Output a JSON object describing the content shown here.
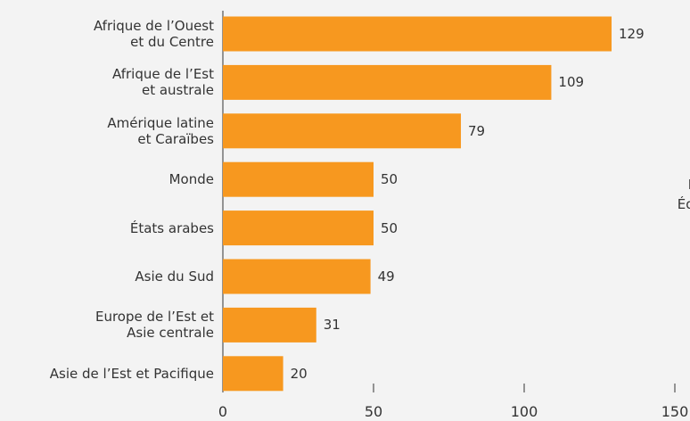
{
  "chart_data": {
    "type": "bar",
    "orientation": "horizontal",
    "categories": [
      "Afrique de l’Ouest\net du Centre",
      "Afrique de l’Est\net australe",
      "Amérique latine\net Caraïbes",
      "Monde",
      "États arabes",
      "Asie du Sud",
      "Europe de l’Est et\nAsie centrale",
      "Asie de l’Est et Pacifique"
    ],
    "values": [
      129,
      109,
      79,
      50,
      50,
      49,
      31,
      20
    ],
    "color": "#f7981f",
    "xlim": [
      0,
      150
    ],
    "xticks": [
      0,
      50,
      100,
      150
    ],
    "annotation": "I\nÉdu"
  }
}
